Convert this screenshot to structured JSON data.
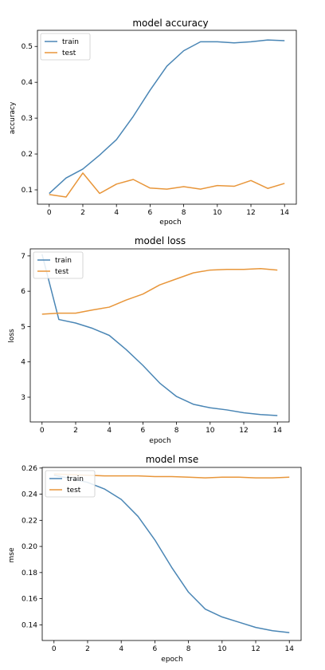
{
  "colors": {
    "train": "#4a86b5",
    "test": "#e8963a"
  },
  "chart_data": [
    {
      "type": "line",
      "title": "model accuracy",
      "xlabel": "epoch",
      "ylabel": "accuracy",
      "xlim": [
        -0.7,
        14.7
      ],
      "ylim": [
        0.06,
        0.545
      ],
      "xticks": [
        "0",
        "2",
        "4",
        "6",
        "8",
        "10",
        "12",
        "14"
      ],
      "yticks": [
        "0.1",
        "0.2",
        "0.3",
        "0.4",
        "0.5"
      ],
      "legend": "top-left",
      "x": [
        0,
        1,
        2,
        3,
        4,
        5,
        6,
        7,
        8,
        9,
        10,
        11,
        12,
        13,
        14
      ],
      "series": [
        {
          "name": "train",
          "values": [
            0.09,
            0.133,
            0.158,
            0.197,
            0.24,
            0.305,
            0.378,
            0.445,
            0.488,
            0.513,
            0.513,
            0.51,
            0.513,
            0.518,
            0.516
          ]
        },
        {
          "name": "test",
          "values": [
            0.087,
            0.08,
            0.147,
            0.09,
            0.116,
            0.129,
            0.105,
            0.102,
            0.109,
            0.102,
            0.112,
            0.11,
            0.126,
            0.104,
            0.118
          ]
        }
      ]
    },
    {
      "type": "line",
      "title": "model loss",
      "xlabel": "epoch",
      "ylabel": "loss",
      "xlim": [
        -0.7,
        14.7
      ],
      "ylim": [
        2.3,
        7.2
      ],
      "xticks": [
        "0",
        "2",
        "4",
        "6",
        "8",
        "10",
        "12",
        "14"
      ],
      "yticks": [
        "3",
        "4",
        "5",
        "6",
        "7"
      ],
      "legend": "top-left",
      "x": [
        0,
        1,
        2,
        3,
        4,
        5,
        6,
        7,
        8,
        9,
        10,
        11,
        12,
        13,
        14
      ],
      "series": [
        {
          "name": "train",
          "values": [
            7.05,
            5.2,
            5.1,
            4.95,
            4.75,
            4.35,
            3.9,
            3.4,
            3.02,
            2.8,
            2.7,
            2.64,
            2.56,
            2.51,
            2.48
          ]
        },
        {
          "name": "test",
          "values": [
            5.35,
            5.38,
            5.38,
            5.47,
            5.55,
            5.75,
            5.92,
            6.18,
            6.35,
            6.52,
            6.6,
            6.62,
            6.62,
            6.64,
            6.6
          ]
        }
      ]
    },
    {
      "type": "line",
      "title": "model mse",
      "xlabel": "epoch",
      "ylabel": "mse",
      "xlim": [
        -0.7,
        14.7
      ],
      "ylim": [
        0.128,
        0.2605
      ],
      "xticks": [
        "0",
        "2",
        "4",
        "6",
        "8",
        "10",
        "12",
        "14"
      ],
      "yticks": [
        "0.14",
        "0.16",
        "0.18",
        "0.20",
        "0.22",
        "0.24",
        "0.26"
      ],
      "legend": "top-left",
      "x": [
        0,
        1,
        2,
        3,
        4,
        5,
        6,
        7,
        8,
        9,
        10,
        11,
        12,
        13,
        14
      ],
      "series": [
        {
          "name": "train",
          "values": [
            0.2545,
            0.252,
            0.249,
            0.244,
            0.236,
            0.223,
            0.205,
            0.184,
            0.165,
            0.152,
            0.146,
            0.142,
            0.138,
            0.1355,
            0.134
          ]
        },
        {
          "name": "test",
          "values": [
            0.2555,
            0.255,
            0.2545,
            0.254,
            0.254,
            0.254,
            0.2535,
            0.2535,
            0.253,
            0.2525,
            0.253,
            0.253,
            0.2525,
            0.2525,
            0.253
          ]
        }
      ]
    }
  ]
}
